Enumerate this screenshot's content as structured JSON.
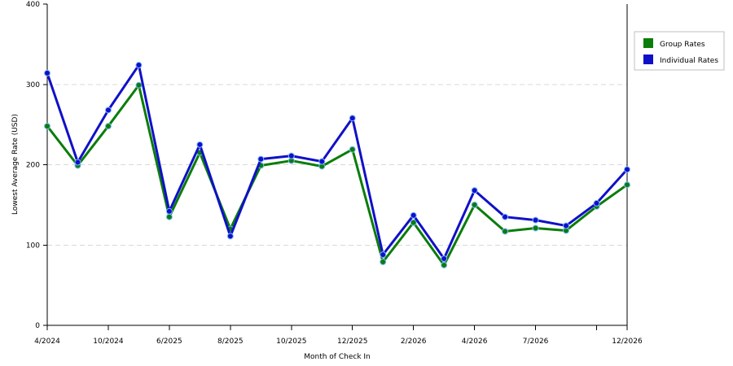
{
  "chart_data": {
    "type": "line",
    "xlabel": "Month of Check In",
    "ylabel": "Lowest Average Rate (USD)",
    "ylim": [
      0,
      400
    ],
    "yticks": [
      0,
      100,
      200,
      300,
      400
    ],
    "grid": "horizontal dashed",
    "legend_position": "right",
    "x_tick_labels": [
      "4/2024",
      "",
      "10/2024",
      "",
      "6/2025",
      "",
      "8/2025",
      "",
      "10/2025",
      "",
      "12/2025",
      "",
      "2/2026",
      "",
      "4/2026",
      "",
      "7/2026",
      "",
      "",
      "12/2026"
    ],
    "series": [
      {
        "name": "Group Rates",
        "color": "#0a7d0a",
        "values": [
          248,
          199,
          248,
          299,
          135,
          215,
          120,
          199,
          205,
          198,
          219,
          79,
          128,
          75,
          150,
          117,
          121,
          118,
          148,
          175
        ]
      },
      {
        "name": "Individual Rates",
        "color": "#1010c8",
        "values": [
          314,
          203,
          268,
          324,
          142,
          225,
          111,
          207,
          211,
          204,
          258,
          88,
          137,
          83,
          168,
          135,
          131,
          124,
          152,
          194
        ]
      }
    ]
  }
}
